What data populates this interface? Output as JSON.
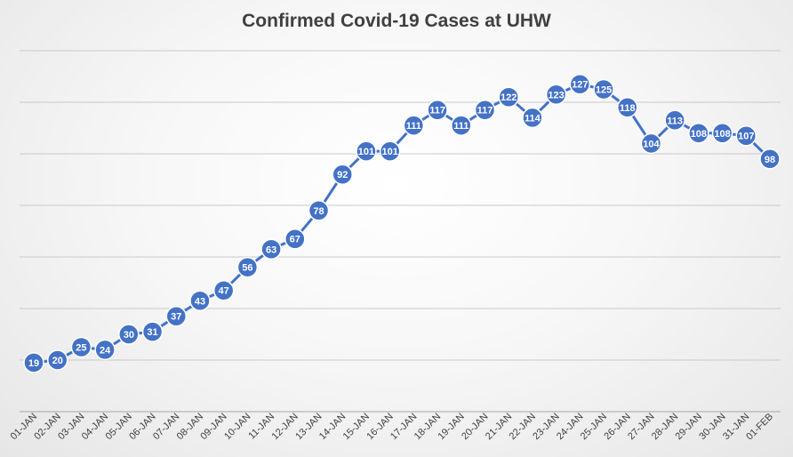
{
  "chart_data": {
    "type": "line",
    "title": "Confirmed Covid-19 Cases at UHW",
    "xlabel": "",
    "ylabel": "",
    "categories": [
      "01-JAN",
      "02-JAN",
      "03-JAN",
      "04-JAN",
      "05-JAN",
      "06-JAN",
      "07-JAN",
      "08-JAN",
      "09-JAN",
      "10-JAN",
      "11-JAN",
      "12-JAN",
      "13-JAN",
      "14-JAN",
      "15-JAN",
      "16-JAN",
      "17-JAN",
      "18-JAN",
      "19-JAN",
      "20-JAN",
      "21-JAN",
      "22-JAN",
      "23-JAN",
      "24-JAN",
      "25-JAN",
      "26-JAN",
      "27-JAN",
      "28-JAN",
      "29-JAN",
      "30-JAN",
      "31-JAN",
      "01-FEB"
    ],
    "values": [
      19,
      20,
      25,
      24,
      30,
      31,
      37,
      43,
      47,
      56,
      63,
      67,
      78,
      92,
      101,
      101,
      111,
      117,
      111,
      117,
      122,
      114,
      123,
      127,
      125,
      118,
      104,
      113,
      108,
      108,
      107,
      98
    ],
    "ylim": [
      0,
      140
    ],
    "y_gridlines": [
      20,
      40,
      60,
      80,
      100,
      120,
      140
    ],
    "grid": true,
    "legend": "none",
    "data_labels": true,
    "colors": {
      "series": "#4472C4",
      "marker_text": "#ffffff",
      "grid": "#c9c9c9"
    }
  }
}
